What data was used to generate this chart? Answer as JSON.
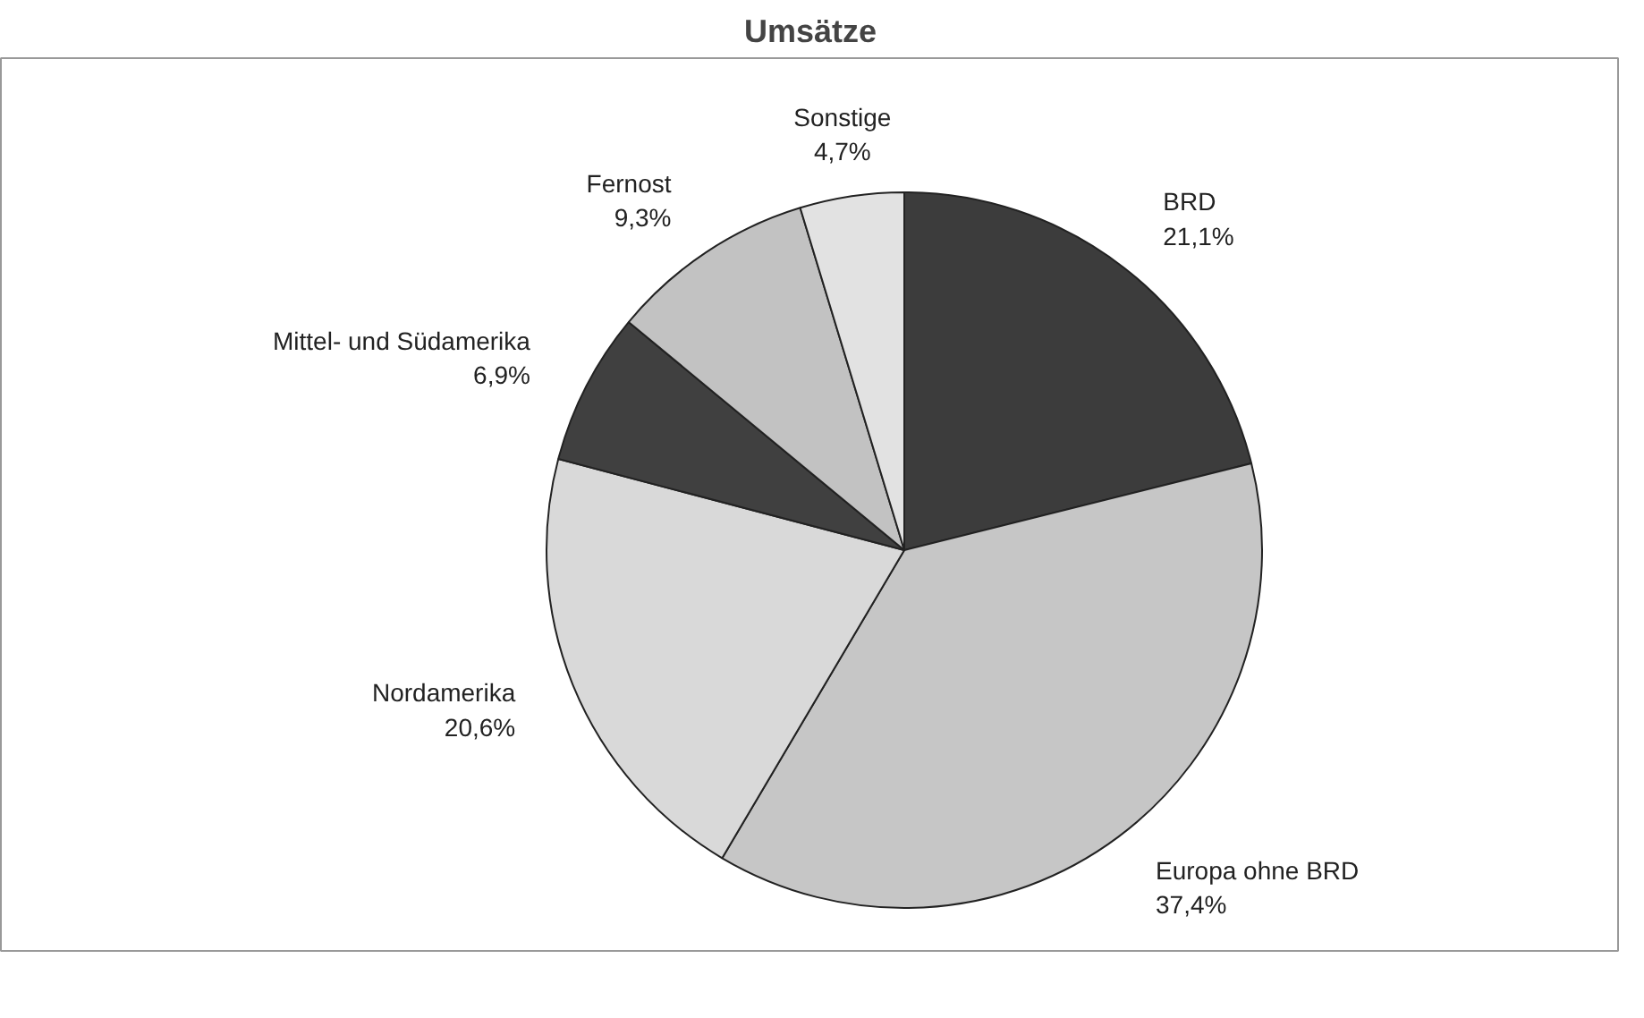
{
  "chart_data": {
    "type": "pie",
    "title": "Umsätze",
    "categories": [
      "BRD",
      "Europa ohne BRD",
      "Nordamerika",
      "Mittel- und Südamerika",
      "Fernost",
      "Sonstige"
    ],
    "values": [
      21.1,
      37.4,
      20.6,
      6.9,
      9.3,
      4.7
    ],
    "value_labels": [
      "21,1%",
      "37,4%",
      "20,6%",
      "6,9%",
      "9,3%",
      "4,7%"
    ],
    "colors": [
      "#3c3c3c",
      "#c6c6c6",
      "#d9d9d9",
      "#404040",
      "#c2c2c2",
      "#e2e2e2"
    ],
    "legend": false
  }
}
